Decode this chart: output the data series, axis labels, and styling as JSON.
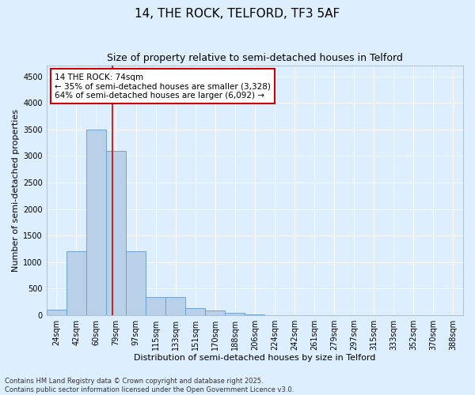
{
  "title1": "14, THE ROCK, TELFORD, TF3 5AF",
  "title2": "Size of property relative to semi-detached houses in Telford",
  "xlabel": "Distribution of semi-detached houses by size in Telford",
  "ylabel": "Number of semi-detached properties",
  "categories": [
    "24sqm",
    "42sqm",
    "60sqm",
    "79sqm",
    "97sqm",
    "115sqm",
    "133sqm",
    "151sqm",
    "170sqm",
    "188sqm",
    "206sqm",
    "224sqm",
    "242sqm",
    "261sqm",
    "279sqm",
    "297sqm",
    "315sqm",
    "333sqm",
    "352sqm",
    "370sqm",
    "388sqm"
  ],
  "values": [
    100,
    1200,
    3500,
    3100,
    1200,
    350,
    350,
    140,
    90,
    40,
    10,
    5,
    3,
    2,
    1,
    0,
    0,
    0,
    0,
    0,
    0
  ],
  "bar_color": "#b8d0e8",
  "bar_edge_color": "#6699cc",
  "property_line_x": 2.82,
  "annotation_text": "14 THE ROCK: 74sqm\n← 35% of semi-detached houses are smaller (3,328)\n64% of semi-detached houses are larger (6,092) →",
  "annotation_box_color": "#ffffff",
  "annotation_box_edge_color": "#cc0000",
  "line_color": "#cc0000",
  "ylim": [
    0,
    4700
  ],
  "yticks": [
    0,
    500,
    1000,
    1500,
    2000,
    2500,
    3000,
    3500,
    4000,
    4500
  ],
  "background_color": "#ddeeff",
  "axes_background": "#ddeeff",
  "grid_color": "#ffffff",
  "footer1": "Contains HM Land Registry data © Crown copyright and database right 2025.",
  "footer2": "Contains public sector information licensed under the Open Government Licence v3.0.",
  "title1_fontsize": 11,
  "title2_fontsize": 9,
  "xlabel_fontsize": 8,
  "ylabel_fontsize": 8,
  "tick_fontsize": 7,
  "footer_fontsize": 6,
  "annot_fontsize": 7.5
}
